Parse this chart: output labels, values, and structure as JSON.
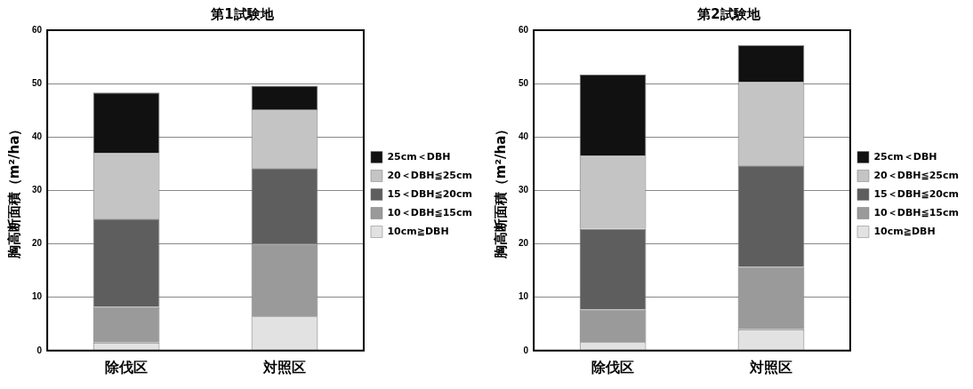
{
  "chart_data": [
    {
      "type": "bar",
      "title": "第1試験地",
      "ylabel": "胸高断面積（m²/ha）",
      "categories": [
        "除伐区",
        "対照区"
      ],
      "stacked": true,
      "ylim": [
        0,
        60
      ],
      "yticks": [
        0,
        10,
        20,
        30,
        40,
        50,
        60
      ],
      "grid": "y",
      "legend": "right",
      "series": [
        {
          "name": "10cm≧DBH",
          "color": "#e2e2e2",
          "values": [
            1.5,
            6.4
          ]
        },
        {
          "name": "10＜DBH≦15cm",
          "color": "#9a9a9a",
          "values": [
            6.7,
            13.6
          ]
        },
        {
          "name": "15＜DBH≦20cm",
          "color": "#5e5e5e",
          "values": [
            16.5,
            14.2
          ]
        },
        {
          "name": "20＜DBH≦25cm",
          "color": "#c4c4c4",
          "values": [
            12.3,
            11.0
          ]
        },
        {
          "name": "25cm＜DBH",
          "color": "#111111",
          "values": [
            11.3,
            4.4
          ]
        }
      ]
    },
    {
      "type": "bar",
      "title": "第2試験地",
      "ylabel": "胸高断面積（m²/ha）",
      "categories": [
        "除伐区",
        "対照区"
      ],
      "stacked": true,
      "ylim": [
        0,
        60
      ],
      "yticks": [
        0,
        10,
        20,
        30,
        40,
        50,
        60
      ],
      "grid": "y",
      "legend": "right",
      "series": [
        {
          "name": "10cm≧DBH",
          "color": "#e2e2e2",
          "values": [
            1.6,
            4.0
          ]
        },
        {
          "name": "10＜DBH≦15cm",
          "color": "#9a9a9a",
          "values": [
            6.1,
            11.7
          ]
        },
        {
          "name": "15＜DBH≦20cm",
          "color": "#5e5e5e",
          "values": [
            15.1,
            19.0
          ]
        },
        {
          "name": "20＜DBH≦25cm",
          "color": "#c4c4c4",
          "values": [
            13.7,
            15.6
          ]
        },
        {
          "name": "25cm＜DBH",
          "color": "#111111",
          "values": [
            15.2,
            6.9
          ]
        }
      ]
    }
  ]
}
